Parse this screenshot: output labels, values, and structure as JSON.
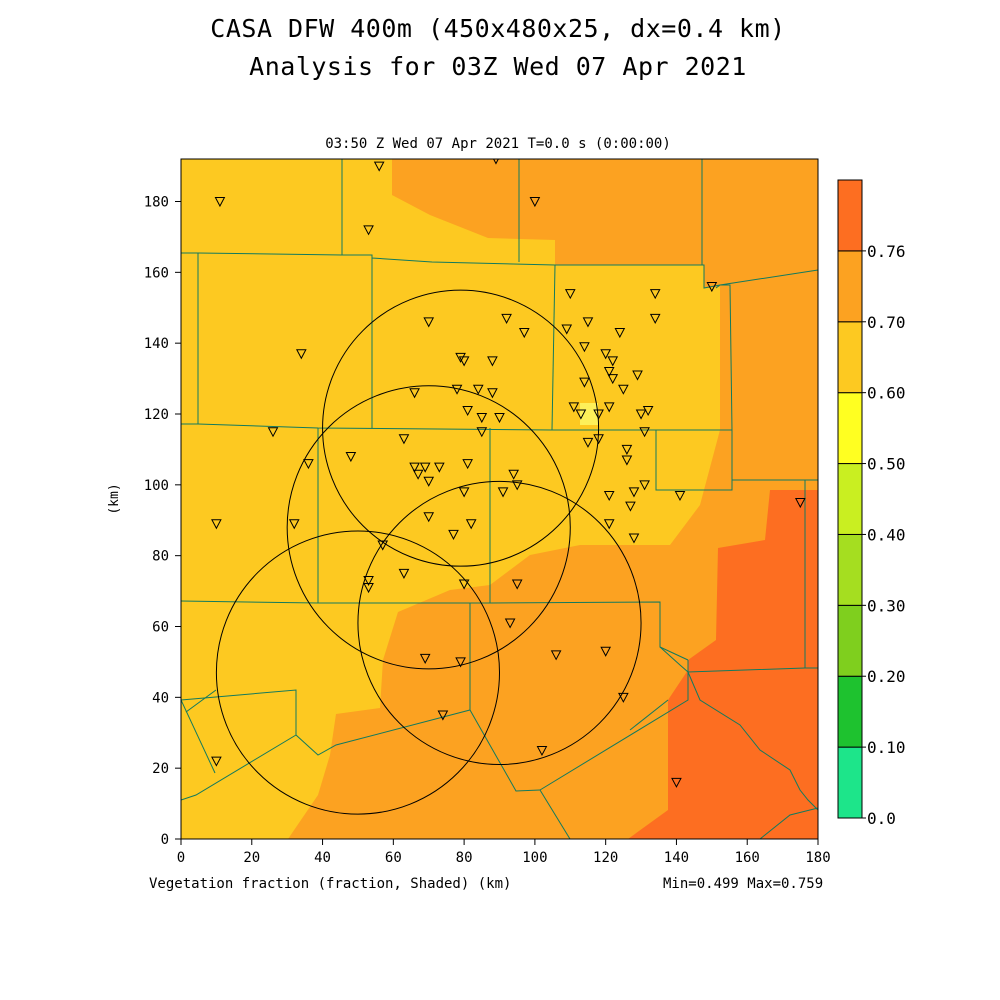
{
  "header": {
    "title_line1": "CASA DFW 400m (450x480x25, dx=0.4 km)",
    "title_line2": "Analysis for 03Z Wed 07 Apr 2021",
    "subtitle": "03:50 Z Wed 07 Apr 2021   T=0.0 s (0:00:00)"
  },
  "footer": {
    "field_label": "Vegetation fraction (fraction, Shaded)  (km)",
    "min_max": "Min=0.499 Max=0.759"
  },
  "chart_data": {
    "type": "heatmap",
    "title": "Vegetation fraction (fraction, Shaded)",
    "xlabel": "(km)",
    "ylabel": "(km)",
    "xlim": [
      0,
      180
    ],
    "ylim": [
      0,
      192
    ],
    "x_ticks": [
      0,
      20,
      40,
      60,
      80,
      100,
      120,
      140,
      160,
      180
    ],
    "y_ticks": [
      0,
      20,
      40,
      60,
      80,
      100,
      120,
      140,
      160,
      180
    ],
    "colorbar": {
      "levels": [
        "0.0",
        "0.10",
        "0.20",
        "0.30",
        "0.40",
        "0.50",
        "0.60",
        "0.70",
        "0.76"
      ],
      "colors": [
        "#1de58a",
        "#1ec22f",
        "#7fcf1e",
        "#a5de20",
        "#c9ef21",
        "#ffff21",
        "#fdc921",
        "#fca221",
        "#fd6e21"
      ]
    },
    "min": 0.499,
    "max": 0.759,
    "radar_rings": [
      {
        "center": [
          79,
          116
        ],
        "radius": 39
      },
      {
        "center": [
          70,
          88
        ],
        "radius": 40
      },
      {
        "center": [
          90,
          61
        ],
        "radius": 40
      },
      {
        "center": [
          50,
          47
        ],
        "radius": 40
      }
    ],
    "stations": [
      [
        11,
        180
      ],
      [
        56,
        190
      ],
      [
        53,
        172
      ],
      [
        89,
        192
      ],
      [
        100,
        180
      ],
      [
        150,
        156
      ],
      [
        134,
        154
      ],
      [
        110,
        154
      ],
      [
        34,
        137
      ],
      [
        70,
        146
      ],
      [
        92,
        147
      ],
      [
        79,
        136
      ],
      [
        80,
        135
      ],
      [
        88,
        135
      ],
      [
        97,
        143
      ],
      [
        109,
        144
      ],
      [
        115,
        146
      ],
      [
        114,
        139
      ],
      [
        124,
        143
      ],
      [
        134,
        147
      ],
      [
        120,
        137
      ],
      [
        122,
        135
      ],
      [
        121,
        132
      ],
      [
        129,
        131
      ],
      [
        66,
        126
      ],
      [
        78,
        127
      ],
      [
        84,
        127
      ],
      [
        88,
        126
      ],
      [
        81,
        121
      ],
      [
        85,
        119
      ],
      [
        90,
        119
      ],
      [
        114,
        129
      ],
      [
        125,
        127
      ],
      [
        111,
        122
      ],
      [
        113,
        120
      ],
      [
        118,
        120
      ],
      [
        121,
        122
      ],
      [
        132,
        121
      ],
      [
        130,
        120
      ],
      [
        85,
        115
      ],
      [
        26,
        115
      ],
      [
        63,
        113
      ],
      [
        115,
        112
      ],
      [
        118,
        113
      ],
      [
        126,
        110
      ],
      [
        131,
        115
      ],
      [
        36,
        106
      ],
      [
        48,
        108
      ],
      [
        73,
        105
      ],
      [
        81,
        106
      ],
      [
        66,
        105
      ],
      [
        67,
        103
      ],
      [
        69,
        105
      ],
      [
        70,
        101
      ],
      [
        94,
        103
      ],
      [
        126,
        107
      ],
      [
        95,
        100
      ],
      [
        80,
        98
      ],
      [
        91,
        98
      ],
      [
        121,
        97
      ],
      [
        128,
        98
      ],
      [
        131,
        100
      ],
      [
        141,
        97
      ],
      [
        175,
        95
      ],
      [
        70,
        91
      ],
      [
        82,
        89
      ],
      [
        10,
        89
      ],
      [
        32,
        89
      ],
      [
        77,
        86
      ],
      [
        121,
        89
      ],
      [
        128,
        85
      ],
      [
        57,
        83
      ],
      [
        63,
        75
      ],
      [
        53,
        73
      ],
      [
        53,
        71
      ],
      [
        80,
        72
      ],
      [
        95,
        72
      ],
      [
        93,
        61
      ],
      [
        69,
        51
      ],
      [
        79,
        50
      ],
      [
        106,
        52
      ],
      [
        120,
        53
      ],
      [
        125,
        40
      ],
      [
        74,
        35
      ],
      [
        102,
        25
      ],
      [
        10,
        22
      ],
      [
        140,
        16
      ],
      [
        127,
        94
      ],
      [
        122,
        130
      ]
    ]
  }
}
